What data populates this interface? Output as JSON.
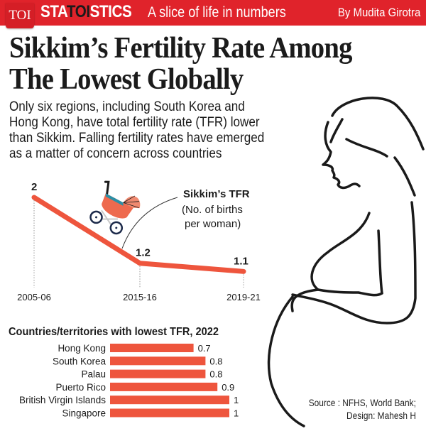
{
  "header": {
    "logo": "TOI",
    "brand_parts": [
      "STA",
      "TOI",
      "STICS"
    ],
    "tagline": "A slice of life in numbers",
    "byline": "By Mudita Girotra"
  },
  "headline": [
    "Sikkim’s Fertility Rate Among",
    "The Lowest Globally"
  ],
  "subtitle": [
    "Only six regions, including South Korea and",
    "Hong Kong, have total fertility rate (TFR) lower",
    "than Sikkim. Falling fertility rates have emerged",
    "as a matter of concern across countries"
  ],
  "colors": {
    "accent": "#ee553d",
    "header_red": "#e0232b",
    "text": "#1b1b1b"
  },
  "illustrations": [
    "pram-icon",
    "pregnant-woman-silhouette"
  ],
  "source": [
    "Source : NFHS, World Bank;",
    "Design: Mahesh H"
  ],
  "chart_data": [
    {
      "type": "line",
      "title": "Sikkim’s TFR",
      "subtitle": "(No. of births per woman)",
      "subtitle_lines": [
        "(No. of births",
        "per woman)"
      ],
      "x": [
        "2005-06",
        "2015-16",
        "2019-21"
      ],
      "values": [
        2,
        1.2,
        1.1
      ],
      "labels": [
        "2",
        "1.2",
        "1.1"
      ],
      "xlabel": "",
      "ylabel": "",
      "grid": false
    },
    {
      "type": "bar",
      "orientation": "horizontal",
      "title": "Countries/territories with lowest TFR, 2022",
      "categories": [
        "Hong Kong",
        "South Korea",
        "Palau",
        "Puerto Rico",
        "British Virgin Islands",
        "Singapore"
      ],
      "values": [
        0.7,
        0.8,
        0.8,
        0.9,
        1,
        1
      ],
      "labels": [
        "0.7",
        "0.8",
        "0.8",
        "0.9",
        "1",
        "1"
      ],
      "xlim": [
        0,
        1
      ],
      "grid": false
    }
  ]
}
